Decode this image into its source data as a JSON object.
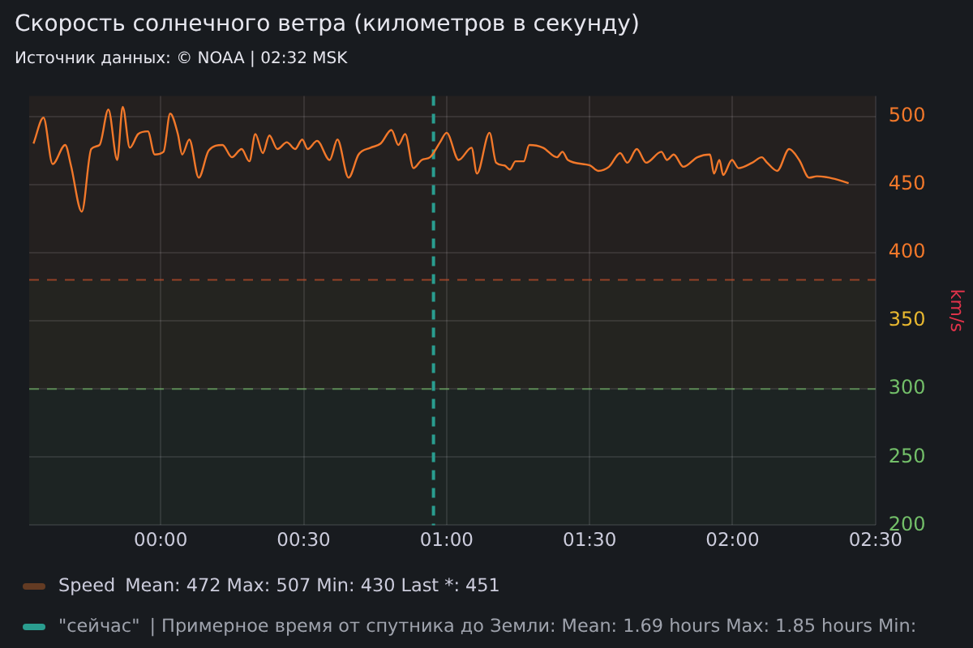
{
  "chart_data": {
    "type": "line",
    "title": "Скорость солнечного ветра (километров в секунду)",
    "subtitle": "Источник данных: © NOAA | 02:32 MSK",
    "ylabel": "km/s",
    "xlim": [
      -0.46,
      2.5
    ],
    "xticks": [
      {
        "value": 0,
        "label": "00:00"
      },
      {
        "value": 0.5,
        "label": "00:30"
      },
      {
        "value": 1,
        "label": "01:00"
      },
      {
        "value": 1.5,
        "label": "01:30"
      },
      {
        "value": 2,
        "label": "02:00"
      },
      {
        "value": 2.5,
        "label": "02:30"
      }
    ],
    "ylim": [
      200,
      515
    ],
    "yticks": [
      200,
      250,
      300,
      350,
      400,
      450,
      500
    ],
    "grid": true,
    "legend": "bottom",
    "marker": "none",
    "line_style": "solid",
    "series": [
      {
        "name": "Speed",
        "color": "#f2782a",
        "x": [
          -0.445,
          -0.41,
          -0.378,
          -0.334,
          -0.314,
          -0.276,
          -0.243,
          -0.214,
          -0.183,
          -0.152,
          -0.133,
          -0.108,
          -0.079,
          -0.045,
          -0.021,
          0.01,
          0.033,
          0.06,
          0.075,
          0.1,
          0.133,
          0.168,
          0.216,
          0.249,
          0.283,
          0.31,
          0.331,
          0.357,
          0.38,
          0.408,
          0.441,
          0.47,
          0.495,
          0.514,
          0.547,
          0.591,
          0.618,
          0.657,
          0.692,
          0.734,
          0.769,
          0.807,
          0.831,
          0.855,
          0.884,
          0.913,
          0.942,
          0.977,
          1.0,
          1.042,
          1.087,
          1.106,
          1.15,
          1.173,
          1.202,
          1.221,
          1.241,
          1.27,
          1.289,
          1.337,
          1.386,
          1.405,
          1.424,
          1.501,
          1.53,
          1.568,
          1.607,
          1.632,
          1.665,
          1.698,
          1.751,
          1.771,
          1.794,
          1.828,
          1.877,
          1.921,
          1.935,
          1.954,
          1.967,
          1.998,
          2.021,
          2.069,
          2.102,
          2.121,
          2.156,
          2.198,
          2.233,
          2.268,
          2.295,
          2.339,
          2.406
        ],
        "values": [
          480,
          499,
          465,
          479,
          464,
          430,
          476,
          479,
          505,
          468,
          507,
          477,
          487,
          489,
          472,
          474,
          502,
          487,
          472,
          483,
          455,
          475,
          479,
          470,
          476,
          467,
          487,
          473,
          486,
          476,
          481,
          476,
          483,
          476,
          482,
          468,
          483,
          455,
          472,
          477,
          480,
          490,
          479,
          487,
          462,
          468,
          470,
          481,
          488,
          468,
          477,
          458,
          488,
          466,
          464,
          461,
          467,
          467,
          479,
          477,
          470,
          474,
          468,
          464,
          460,
          463,
          473,
          466,
          476,
          466,
          474,
          468,
          472,
          463,
          470,
          472,
          458,
          468,
          457,
          468,
          462,
          466,
          470,
          466,
          460,
          476,
          468,
          455,
          456,
          455,
          451
        ]
      }
    ],
    "ref_lines": [
      {
        "axis": "y",
        "value": 300,
        "color": "#73bf69",
        "line_style": "dashed"
      },
      {
        "axis": "y",
        "value": 380,
        "color": "#e0572c",
        "line_style": "dashed"
      },
      {
        "axis": "x",
        "value": 0.954,
        "label": "\"сейчас\"",
        "color": "#2a9d8f",
        "line_style": "dashed"
      }
    ],
    "bands": [
      {
        "axis": "y",
        "from": 200,
        "to": 300,
        "color": "#73bf69"
      },
      {
        "axis": "y",
        "from": 300,
        "to": 380,
        "color": "#e8b830"
      },
      {
        "axis": "y",
        "from": 380,
        "to": 515,
        "color": "#f2782a"
      }
    ],
    "annotations": [
      "Mean: 472  Max: 507  Min: 430  Last *: 451",
      "| Примерное время от спутника до Земли:  Mean: 1.69 hours  Max: 1.85 hours  Min:"
    ]
  }
}
